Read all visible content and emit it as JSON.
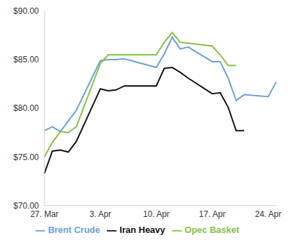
{
  "chart_data": {
    "type": "line",
    "categories": [
      "27. Mar",
      null,
      null,
      null,
      null,
      null,
      null,
      "3. Apr",
      null,
      null,
      null,
      null,
      null,
      null,
      "10. Apr",
      null,
      null,
      null,
      null,
      null,
      null,
      "17. Apr",
      null,
      null,
      null,
      null,
      null,
      null,
      "24. Apr",
      null
    ],
    "series": [
      {
        "name": "Brent Crude",
        "color": "#6a9fd8",
        "values": [
          77.7,
          78.1,
          77.6,
          78.7,
          79.8,
          null,
          null,
          84.9,
          85.0,
          85.0,
          85.1,
          null,
          null,
          null,
          84.2,
          85.6,
          87.3,
          86.1,
          86.3,
          null,
          null,
          84.8,
          84.8,
          83.1,
          80.8,
          81.4,
          null,
          null,
          81.2,
          82.7
        ]
      },
      {
        "name": "Iran Heavy",
        "color": "#111111",
        "values": [
          73.3,
          75.6,
          75.7,
          75.5,
          76.6,
          null,
          null,
          82.0,
          81.8,
          81.9,
          82.3,
          null,
          null,
          null,
          82.3,
          84.1,
          84.2,
          83.7,
          83.1,
          null,
          null,
          81.5,
          81.6,
          80.1,
          77.7,
          77.7,
          null,
          null,
          null,
          null
        ]
      },
      {
        "name": "Opec Basket",
        "color": "#82c341",
        "values": [
          75.0,
          76.5,
          77.6,
          77.5,
          78.1,
          null,
          null,
          84.6,
          85.5,
          85.5,
          85.5,
          null,
          null,
          null,
          85.5,
          86.8,
          87.8,
          86.8,
          86.7,
          null,
          null,
          86.4,
          85.5,
          84.4,
          84.4,
          null,
          null,
          null,
          null,
          null
        ]
      }
    ],
    "ylim": [
      70,
      90
    ],
    "yticks": [
      {
        "value": 70,
        "label": "$70.00"
      },
      {
        "value": 75,
        "label": "$75.00"
      },
      {
        "value": 80,
        "label": "$80.00"
      },
      {
        "value": 85,
        "label": "$85.00"
      },
      {
        "value": 90,
        "label": "$90.00"
      }
    ],
    "grid": false,
    "legend": "bottom"
  }
}
